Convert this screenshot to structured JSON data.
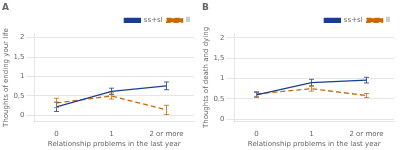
{
  "chart_data": [
    {
      "type": "line",
      "title": "A",
      "xlabel": "Relationship problems in the last year",
      "ylabel": "Thoughts of ending your life",
      "x": [
        0,
        1,
        2
      ],
      "xlim": [
        -0.4,
        2.5
      ],
      "xticks": [
        0,
        1,
        {
          "value": 2,
          "label": "2 or more"
        }
      ],
      "ylim": [
        -0.15,
        2.1
      ],
      "yticks": [
        0,
        {
          "value": 0.5,
          "label": "0,5"
        },
        1,
        {
          "value": 1.5,
          "label": "1,5"
        },
        2
      ],
      "grid": "y",
      "legend": "upper right",
      "series": [
        {
          "name": "ss+sl",
          "color": "#1a3e8f",
          "line_style": "solid",
          "values": [
            0.22,
            0.62,
            0.76
          ],
          "errors": [
            0.12,
            0.08,
            0.1
          ]
        },
        {
          "name": "ll",
          "color": "#c8690a",
          "line_style": "dashed",
          "values": [
            0.32,
            0.5,
            0.14
          ],
          "errors": [
            0.12,
            0.08,
            0.12
          ]
        }
      ]
    },
    {
      "type": "line",
      "title": "B",
      "xlabel": "Relationship problems in the last year",
      "ylabel": "Thoughts of death and dying",
      "x": [
        0,
        1,
        2
      ],
      "xlim": [
        -0.4,
        2.5
      ],
      "xticks": [
        0,
        1,
        {
          "value": 2,
          "label": "2 or more"
        }
      ],
      "ylim": [
        -0.05,
        2.1
      ],
      "yticks": [
        0,
        {
          "value": 0.5,
          "label": "0,5"
        },
        1,
        {
          "value": 1.5,
          "label": "1,5"
        },
        2
      ],
      "grid": "y",
      "legend": "upper right",
      "series": [
        {
          "name": "ss+sl",
          "color": "#1a3e8f",
          "line_style": "solid",
          "values": [
            0.6,
            0.9,
            0.96
          ],
          "errors": [
            0.06,
            0.08,
            0.07
          ]
        },
        {
          "name": "ll",
          "color": "#c8690a",
          "line_style": "dashed",
          "values": [
            0.62,
            0.75,
            0.58
          ],
          "errors": [
            0.06,
            0.06,
            0.05
          ]
        }
      ]
    }
  ]
}
